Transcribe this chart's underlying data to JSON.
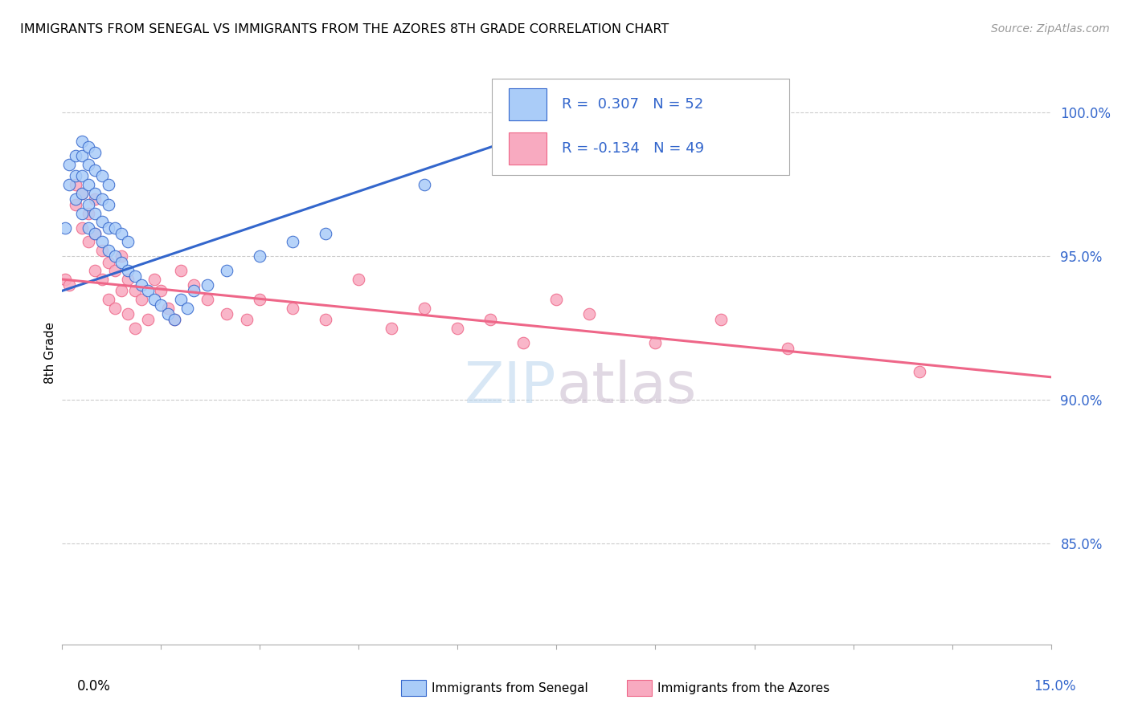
{
  "title": "IMMIGRANTS FROM SENEGAL VS IMMIGRANTS FROM THE AZORES 8TH GRADE CORRELATION CHART",
  "source": "Source: ZipAtlas.com",
  "ylabel": "8th Grade",
  "ytick_labels": [
    "100.0%",
    "95.0%",
    "90.0%",
    "85.0%"
  ],
  "ytick_values": [
    1.0,
    0.95,
    0.9,
    0.85
  ],
  "xlim": [
    0.0,
    0.15
  ],
  "ylim": [
    0.815,
    1.018
  ],
  "legend_r_senegal": "R =  0.307",
  "legend_n_senegal": "N = 52",
  "legend_r_azores": "R = -0.134",
  "legend_n_azores": "N = 49",
  "senegal_color": "#aaccf8",
  "azores_color": "#f8aac0",
  "senegal_line_color": "#3366cc",
  "azores_line_color": "#ee6688",
  "senegal_x": [
    0.0005,
    0.001,
    0.001,
    0.002,
    0.002,
    0.002,
    0.003,
    0.003,
    0.003,
    0.003,
    0.003,
    0.004,
    0.004,
    0.004,
    0.004,
    0.004,
    0.005,
    0.005,
    0.005,
    0.005,
    0.005,
    0.006,
    0.006,
    0.006,
    0.006,
    0.007,
    0.007,
    0.007,
    0.007,
    0.008,
    0.008,
    0.009,
    0.009,
    0.01,
    0.01,
    0.011,
    0.012,
    0.013,
    0.014,
    0.015,
    0.016,
    0.017,
    0.018,
    0.019,
    0.02,
    0.022,
    0.025,
    0.03,
    0.035,
    0.04,
    0.055,
    0.072
  ],
  "senegal_y": [
    0.96,
    0.975,
    0.982,
    0.97,
    0.978,
    0.985,
    0.965,
    0.972,
    0.978,
    0.985,
    0.99,
    0.96,
    0.968,
    0.975,
    0.982,
    0.988,
    0.958,
    0.965,
    0.972,
    0.98,
    0.986,
    0.955,
    0.962,
    0.97,
    0.978,
    0.952,
    0.96,
    0.968,
    0.975,
    0.95,
    0.96,
    0.948,
    0.958,
    0.945,
    0.955,
    0.943,
    0.94,
    0.938,
    0.935,
    0.933,
    0.93,
    0.928,
    0.935,
    0.932,
    0.938,
    0.94,
    0.945,
    0.95,
    0.955,
    0.958,
    0.975,
    0.995
  ],
  "azores_x": [
    0.0005,
    0.001,
    0.002,
    0.002,
    0.003,
    0.003,
    0.004,
    0.004,
    0.005,
    0.005,
    0.005,
    0.006,
    0.006,
    0.007,
    0.007,
    0.008,
    0.008,
    0.009,
    0.009,
    0.01,
    0.01,
    0.011,
    0.011,
    0.012,
    0.013,
    0.014,
    0.015,
    0.016,
    0.017,
    0.018,
    0.02,
    0.022,
    0.025,
    0.028,
    0.03,
    0.035,
    0.04,
    0.045,
    0.05,
    0.055,
    0.06,
    0.065,
    0.07,
    0.075,
    0.08,
    0.09,
    0.1,
    0.11,
    0.13
  ],
  "azores_y": [
    0.942,
    0.94,
    0.968,
    0.975,
    0.96,
    0.972,
    0.955,
    0.965,
    0.945,
    0.958,
    0.97,
    0.942,
    0.952,
    0.935,
    0.948,
    0.932,
    0.945,
    0.938,
    0.95,
    0.93,
    0.942,
    0.925,
    0.938,
    0.935,
    0.928,
    0.942,
    0.938,
    0.932,
    0.928,
    0.945,
    0.94,
    0.935,
    0.93,
    0.928,
    0.935,
    0.932,
    0.928,
    0.942,
    0.925,
    0.932,
    0.925,
    0.928,
    0.92,
    0.935,
    0.93,
    0.92,
    0.928,
    0.918,
    0.91
  ],
  "senegal_trend_x": [
    0.0,
    0.078
  ],
  "senegal_trend_y": [
    0.938,
    0.998
  ],
  "azores_trend_x": [
    0.0,
    0.15
  ],
  "azores_trend_y": [
    0.942,
    0.908
  ]
}
